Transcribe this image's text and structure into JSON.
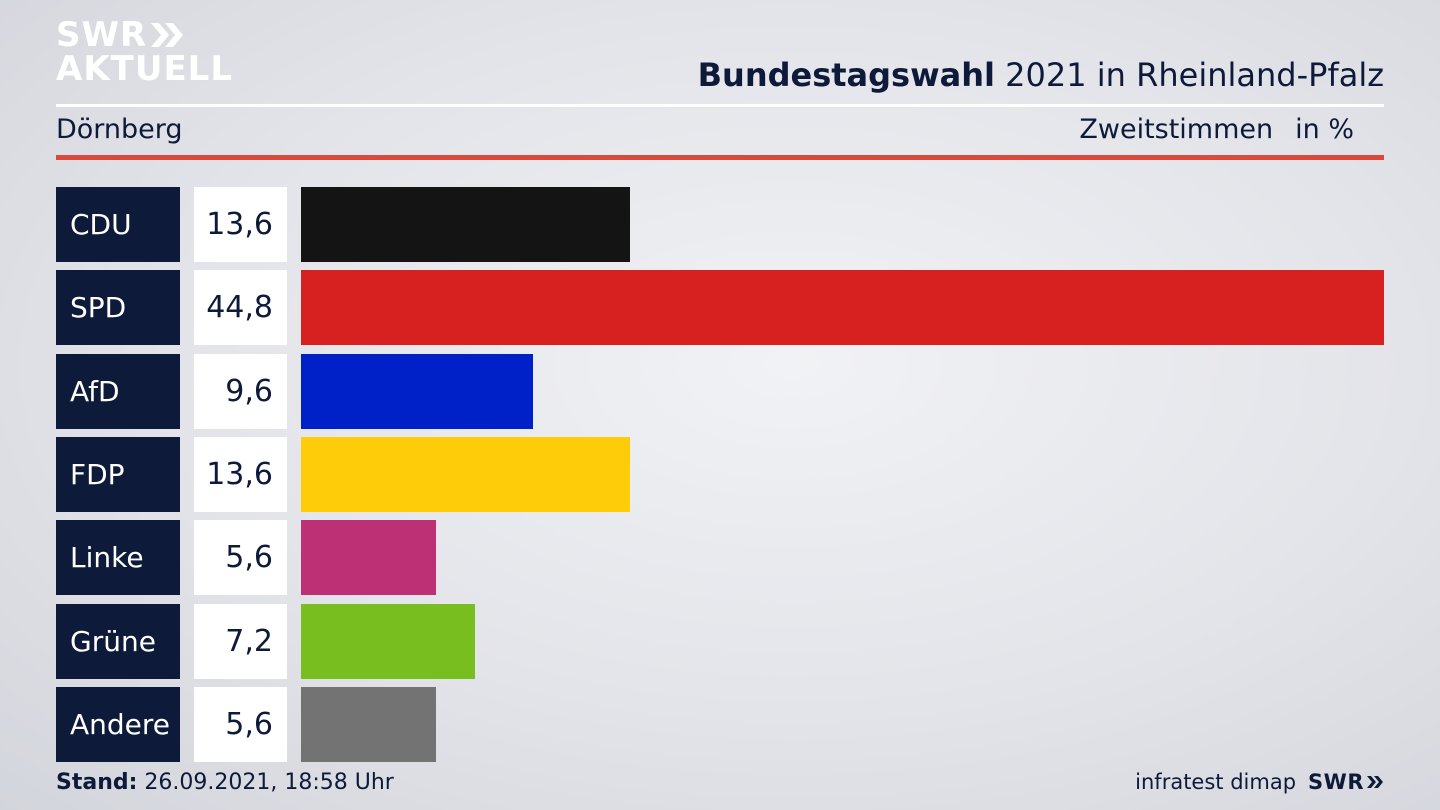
{
  "brand": {
    "line1": "SWR",
    "line2": "AKTUELL"
  },
  "header": {
    "title_bold": "Bundestagswahl",
    "title_rest": " 2021 in Rheinland-Pfalz",
    "location": "Dörnberg",
    "vote_type": "Zweitstimmen",
    "unit": "in %"
  },
  "footer": {
    "stand_label": "Stand:",
    "stand_value": " 26.09.2021, 18:58 Uhr",
    "source": "infratest dimap",
    "swr": "SWR"
  },
  "chart_data": {
    "type": "bar",
    "orientation": "horizontal",
    "categories": [
      "CDU",
      "SPD",
      "AfD",
      "FDP",
      "Linke",
      "Grüne",
      "Andere"
    ],
    "values": [
      13.6,
      44.8,
      9.6,
      13.6,
      5.6,
      7.2,
      5.6
    ],
    "value_labels": [
      "13,6",
      "44,8",
      "9,6",
      "13,6",
      "5,6",
      "7,2",
      "5,6"
    ],
    "colors": [
      "#141414",
      "#d72020",
      "#0021c8",
      "#ffcc0a",
      "#bd3075",
      "#78be1e",
      "#737373"
    ],
    "xlim": [
      0,
      44.8
    ]
  }
}
